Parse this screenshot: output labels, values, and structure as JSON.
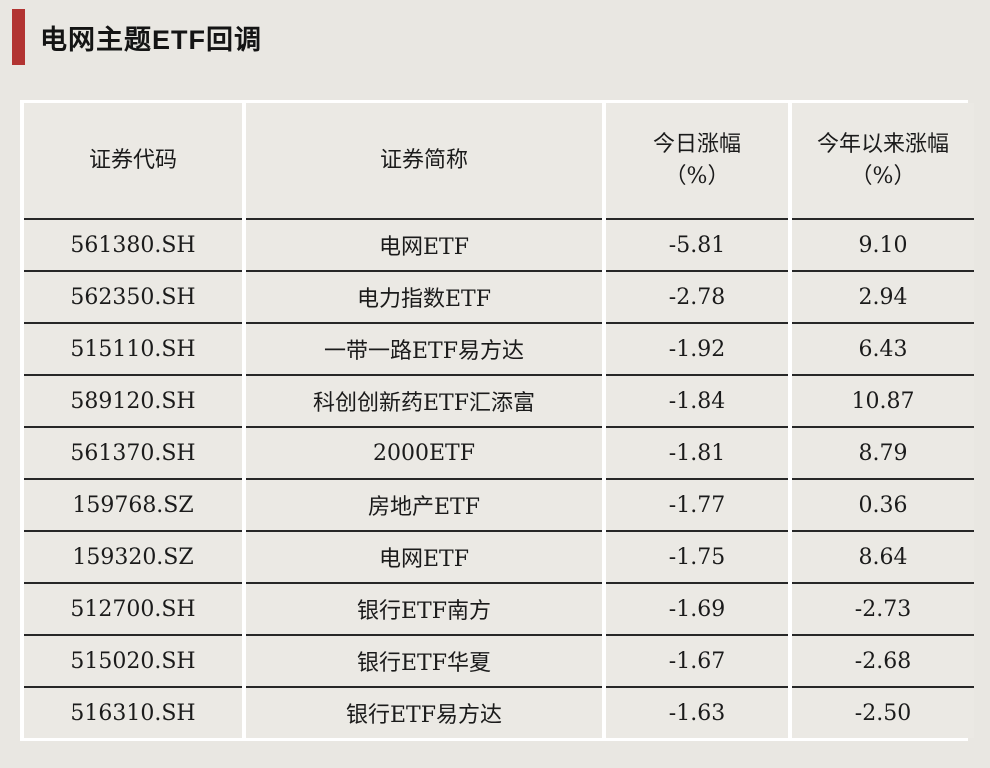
{
  "page": {
    "title": "电网主题ETF回调",
    "accent_color": "#b23432",
    "background_color": "#e9e7e2",
    "cell_color": "#ebe9e4",
    "grid_line_color": "#ffffff",
    "row_separator_color": "#272727"
  },
  "table": {
    "columns": [
      {
        "label": "证券代码",
        "label_line2": ""
      },
      {
        "label": "证券简称",
        "label_line2": ""
      },
      {
        "label": "今日涨幅",
        "label_line2": "（%）"
      },
      {
        "label": "今年以来涨幅",
        "label_line2": "（%）"
      }
    ],
    "rows": [
      {
        "code": "561380.SH",
        "name": "电网ETF",
        "today": "-5.81",
        "ytd": "9.10"
      },
      {
        "code": "562350.SH",
        "name": "电力指数ETF",
        "today": "-2.78",
        "ytd": "2.94"
      },
      {
        "code": "515110.SH",
        "name": "一带一路ETF易方达",
        "today": "-1.92",
        "ytd": "6.43"
      },
      {
        "code": "589120.SH",
        "name": "科创创新药ETF汇添富",
        "today": "-1.84",
        "ytd": "10.87"
      },
      {
        "code": "561370.SH",
        "name": "2000ETF",
        "today": "-1.81",
        "ytd": "8.79"
      },
      {
        "code": "159768.SZ",
        "name": "房地产ETF",
        "today": "-1.77",
        "ytd": "0.36"
      },
      {
        "code": "159320.SZ",
        "name": "电网ETF",
        "today": "-1.75",
        "ytd": "8.64"
      },
      {
        "code": "512700.SH",
        "name": "银行ETF南方",
        "today": "-1.69",
        "ytd": "-2.73"
      },
      {
        "code": "515020.SH",
        "name": "银行ETF华夏",
        "today": "-1.67",
        "ytd": "-2.68"
      },
      {
        "code": "516310.SH",
        "name": "银行ETF易方达",
        "today": "-1.63",
        "ytd": "-2.50"
      }
    ]
  },
  "chart_data": {
    "type": "table",
    "title": "电网主题ETF回调",
    "columns": [
      "证券代码",
      "证券简称",
      "今日涨幅（%）",
      "今年以来涨幅（%）"
    ],
    "rows": [
      [
        "561380.SH",
        "电网ETF",
        -5.81,
        9.1
      ],
      [
        "562350.SH",
        "电力指数ETF",
        -2.78,
        2.94
      ],
      [
        "515110.SH",
        "一带一路ETF易方达",
        -1.92,
        6.43
      ],
      [
        "589120.SH",
        "科创创新药ETF汇添富",
        -1.84,
        10.87
      ],
      [
        "561370.SH",
        "2000ETF",
        -1.81,
        8.79
      ],
      [
        "159768.SZ",
        "房地产ETF",
        -1.77,
        0.36
      ],
      [
        "159320.SZ",
        "电网ETF",
        -1.75,
        8.64
      ],
      [
        "512700.SH",
        "银行ETF南方",
        -1.69,
        -2.73
      ],
      [
        "515020.SH",
        "银行ETF华夏",
        -1.67,
        -2.68
      ],
      [
        "516310.SH",
        "银行ETF易方达",
        -1.63,
        -2.5
      ]
    ]
  }
}
